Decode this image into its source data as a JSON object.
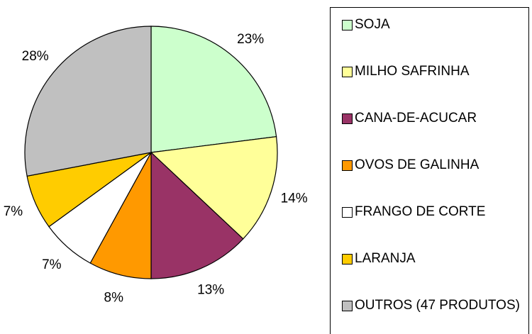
{
  "chart_data": {
    "type": "pie",
    "categories": [
      "SOJA",
      "MILHO SAFRINHA",
      "CANA-DE-ACUCAR",
      "OVOS DE GALINHA",
      "FRANGO DE CORTE",
      "LARANJA",
      "OUTROS (47 PRODUTOS)"
    ],
    "values": [
      23,
      14,
      13,
      8,
      7,
      7,
      28
    ],
    "value_labels": [
      "23%",
      "14%",
      "13%",
      "8%",
      "7%",
      "7%",
      "28%"
    ],
    "colors": [
      "#ccffcc",
      "#ffff99",
      "#993366",
      "#ff9900",
      "#ffffff",
      "#ffcc00",
      "#c0c0c0"
    ],
    "legend": "right"
  }
}
